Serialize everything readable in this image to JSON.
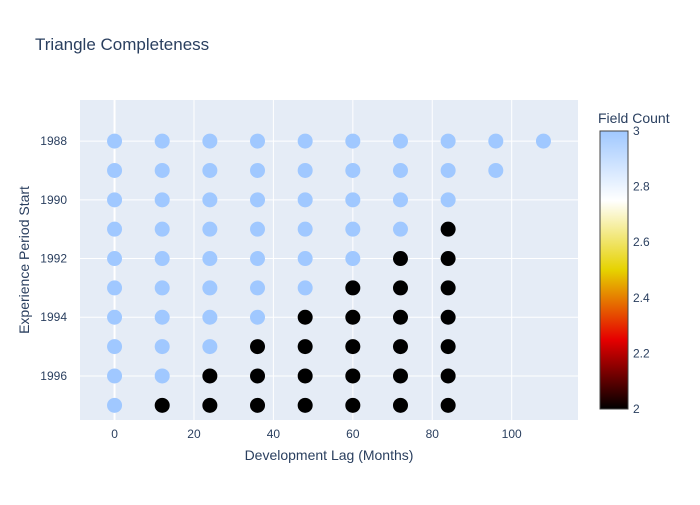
{
  "chart_data": {
    "type": "scatter",
    "title": "Triangle Completeness",
    "xlabel": "Development Lag (Months)",
    "ylabel": "Experience Period Start",
    "xlim": [
      -8.7,
      116.7
    ],
    "ylim": [
      1997.5,
      1986.6
    ],
    "x_ticks": [
      0,
      20,
      40,
      60,
      80,
      100
    ],
    "y_ticks": [
      1988,
      1990,
      1992,
      1994,
      1996
    ],
    "grid": true,
    "colorbar": {
      "title": "Field Count",
      "min": 2,
      "max": 3,
      "ticks": [
        2,
        2.2,
        2.4,
        2.6,
        2.8,
        3
      ],
      "colorscale": [
        "#000000",
        "#e60000",
        "#e6d200",
        "#ffffff",
        "#a0c8ff"
      ]
    },
    "points": [
      {
        "x": 0,
        "y": 1988,
        "value": 3
      },
      {
        "x": 12,
        "y": 1988,
        "value": 3
      },
      {
        "x": 24,
        "y": 1988,
        "value": 3
      },
      {
        "x": 36,
        "y": 1988,
        "value": 3
      },
      {
        "x": 48,
        "y": 1988,
        "value": 3
      },
      {
        "x": 60,
        "y": 1988,
        "value": 3
      },
      {
        "x": 72,
        "y": 1988,
        "value": 3
      },
      {
        "x": 84,
        "y": 1988,
        "value": 3
      },
      {
        "x": 96,
        "y": 1988,
        "value": 3
      },
      {
        "x": 108,
        "y": 1988,
        "value": 3
      },
      {
        "x": 0,
        "y": 1989,
        "value": 3
      },
      {
        "x": 12,
        "y": 1989,
        "value": 3
      },
      {
        "x": 24,
        "y": 1989,
        "value": 3
      },
      {
        "x": 36,
        "y": 1989,
        "value": 3
      },
      {
        "x": 48,
        "y": 1989,
        "value": 3
      },
      {
        "x": 60,
        "y": 1989,
        "value": 3
      },
      {
        "x": 72,
        "y": 1989,
        "value": 3
      },
      {
        "x": 84,
        "y": 1989,
        "value": 3
      },
      {
        "x": 96,
        "y": 1989,
        "value": 3
      },
      {
        "x": 0,
        "y": 1990,
        "value": 3
      },
      {
        "x": 12,
        "y": 1990,
        "value": 3
      },
      {
        "x": 24,
        "y": 1990,
        "value": 3
      },
      {
        "x": 36,
        "y": 1990,
        "value": 3
      },
      {
        "x": 48,
        "y": 1990,
        "value": 3
      },
      {
        "x": 60,
        "y": 1990,
        "value": 3
      },
      {
        "x": 72,
        "y": 1990,
        "value": 3
      },
      {
        "x": 84,
        "y": 1990,
        "value": 3
      },
      {
        "x": 0,
        "y": 1991,
        "value": 3
      },
      {
        "x": 12,
        "y": 1991,
        "value": 3
      },
      {
        "x": 24,
        "y": 1991,
        "value": 3
      },
      {
        "x": 36,
        "y": 1991,
        "value": 3
      },
      {
        "x": 48,
        "y": 1991,
        "value": 3
      },
      {
        "x": 60,
        "y": 1991,
        "value": 3
      },
      {
        "x": 72,
        "y": 1991,
        "value": 3
      },
      {
        "x": 84,
        "y": 1991,
        "value": 2
      },
      {
        "x": 0,
        "y": 1992,
        "value": 3
      },
      {
        "x": 12,
        "y": 1992,
        "value": 3
      },
      {
        "x": 24,
        "y": 1992,
        "value": 3
      },
      {
        "x": 36,
        "y": 1992,
        "value": 3
      },
      {
        "x": 48,
        "y": 1992,
        "value": 3
      },
      {
        "x": 60,
        "y": 1992,
        "value": 3
      },
      {
        "x": 72,
        "y": 1992,
        "value": 2
      },
      {
        "x": 84,
        "y": 1992,
        "value": 2
      },
      {
        "x": 0,
        "y": 1993,
        "value": 3
      },
      {
        "x": 12,
        "y": 1993,
        "value": 3
      },
      {
        "x": 24,
        "y": 1993,
        "value": 3
      },
      {
        "x": 36,
        "y": 1993,
        "value": 3
      },
      {
        "x": 48,
        "y": 1993,
        "value": 3
      },
      {
        "x": 60,
        "y": 1993,
        "value": 2
      },
      {
        "x": 72,
        "y": 1993,
        "value": 2
      },
      {
        "x": 84,
        "y": 1993,
        "value": 2
      },
      {
        "x": 0,
        "y": 1994,
        "value": 3
      },
      {
        "x": 12,
        "y": 1994,
        "value": 3
      },
      {
        "x": 24,
        "y": 1994,
        "value": 3
      },
      {
        "x": 36,
        "y": 1994,
        "value": 3
      },
      {
        "x": 48,
        "y": 1994,
        "value": 2
      },
      {
        "x": 60,
        "y": 1994,
        "value": 2
      },
      {
        "x": 72,
        "y": 1994,
        "value": 2
      },
      {
        "x": 84,
        "y": 1994,
        "value": 2
      },
      {
        "x": 0,
        "y": 1995,
        "value": 3
      },
      {
        "x": 12,
        "y": 1995,
        "value": 3
      },
      {
        "x": 24,
        "y": 1995,
        "value": 3
      },
      {
        "x": 36,
        "y": 1995,
        "value": 2
      },
      {
        "x": 48,
        "y": 1995,
        "value": 2
      },
      {
        "x": 60,
        "y": 1995,
        "value": 2
      },
      {
        "x": 72,
        "y": 1995,
        "value": 2
      },
      {
        "x": 84,
        "y": 1995,
        "value": 2
      },
      {
        "x": 0,
        "y": 1996,
        "value": 3
      },
      {
        "x": 12,
        "y": 1996,
        "value": 3
      },
      {
        "x": 24,
        "y": 1996,
        "value": 2
      },
      {
        "x": 36,
        "y": 1996,
        "value": 2
      },
      {
        "x": 48,
        "y": 1996,
        "value": 2
      },
      {
        "x": 60,
        "y": 1996,
        "value": 2
      },
      {
        "x": 72,
        "y": 1996,
        "value": 2
      },
      {
        "x": 84,
        "y": 1996,
        "value": 2
      },
      {
        "x": 0,
        "y": 1997,
        "value": 3
      },
      {
        "x": 12,
        "y": 1997,
        "value": 2
      },
      {
        "x": 24,
        "y": 1997,
        "value": 2
      },
      {
        "x": 36,
        "y": 1997,
        "value": 2
      },
      {
        "x": 48,
        "y": 1997,
        "value": 2
      },
      {
        "x": 60,
        "y": 1997,
        "value": 2
      },
      {
        "x": 72,
        "y": 1997,
        "value": 2
      },
      {
        "x": 84,
        "y": 1997,
        "value": 2
      }
    ]
  }
}
